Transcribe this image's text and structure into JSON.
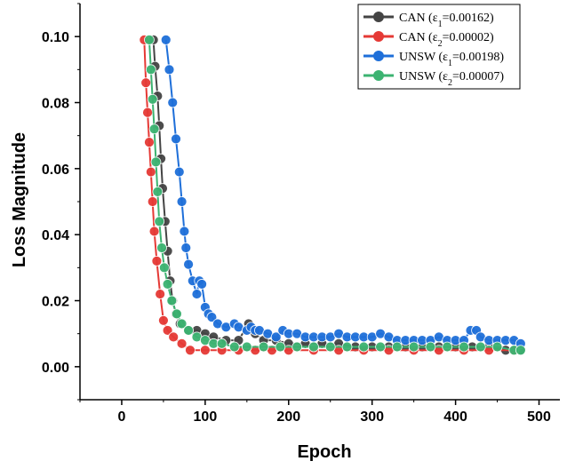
{
  "chart_data": {
    "type": "line",
    "title": "",
    "xlabel": "Epoch",
    "ylabel": "Loss Magnitude",
    "xlim": [
      -50,
      525
    ],
    "ylim": [
      -0.01,
      0.11
    ],
    "x_ticks": [
      0,
      100,
      200,
      300,
      400,
      500
    ],
    "y_ticks": [
      0.0,
      0.02,
      0.04,
      0.06,
      0.08,
      0.1
    ],
    "y_tick_labels": [
      "0.00",
      "0.02",
      "0.04",
      "0.06",
      "0.08",
      "0.10"
    ],
    "grid": false,
    "legend_position": "top-right",
    "series": [
      {
        "name": "CAN (ε1=0.00162)",
        "legend": {
          "base": "CAN (ε",
          "sub": "1",
          "rest": "=0.00162)"
        },
        "color": "#444444",
        "points": [
          [
            38,
            0.099
          ],
          [
            40,
            0.091
          ],
          [
            43,
            0.082
          ],
          [
            45,
            0.073
          ],
          [
            47,
            0.063
          ],
          [
            49,
            0.054
          ],
          [
            52,
            0.044
          ],
          [
            55,
            0.035
          ],
          [
            58,
            0.026
          ],
          [
            61,
            0.02
          ],
          [
            65,
            0.016
          ],
          [
            70,
            0.013
          ],
          [
            80,
            0.011
          ],
          [
            90,
            0.011
          ],
          [
            100,
            0.01
          ],
          [
            110,
            0.009
          ],
          [
            125,
            0.008
          ],
          [
            140,
            0.008
          ],
          [
            152,
            0.013
          ],
          [
            160,
            0.01
          ],
          [
            170,
            0.008
          ],
          [
            185,
            0.008
          ],
          [
            200,
            0.007
          ],
          [
            220,
            0.007
          ],
          [
            240,
            0.007
          ],
          [
            260,
            0.007
          ],
          [
            280,
            0.006
          ],
          [
            300,
            0.006
          ],
          [
            320,
            0.006
          ],
          [
            340,
            0.006
          ],
          [
            360,
            0.006
          ],
          [
            380,
            0.006
          ],
          [
            400,
            0.006
          ],
          [
            420,
            0.006
          ],
          [
            440,
            0.006
          ],
          [
            460,
            0.005
          ],
          [
            478,
            0.005
          ]
        ]
      },
      {
        "name": "CAN (ε2=0.00002)",
        "legend": {
          "base": "CAN (ε",
          "sub": "2",
          "rest": "=0.00002)"
        },
        "color": "#e53935",
        "points": [
          [
            27,
            0.099
          ],
          [
            29,
            0.086
          ],
          [
            31,
            0.077
          ],
          [
            33,
            0.068
          ],
          [
            35,
            0.059
          ],
          [
            37,
            0.05
          ],
          [
            39,
            0.041
          ],
          [
            42,
            0.032
          ],
          [
            46,
            0.022
          ],
          [
            50,
            0.014
          ],
          [
            55,
            0.011
          ],
          [
            62,
            0.009
          ],
          [
            72,
            0.007
          ],
          [
            82,
            0.005
          ],
          [
            100,
            0.005
          ],
          [
            120,
            0.005
          ],
          [
            140,
            0.005
          ],
          [
            160,
            0.005
          ],
          [
            180,
            0.005
          ],
          [
            200,
            0.005
          ],
          [
            230,
            0.005
          ],
          [
            260,
            0.005
          ],
          [
            290,
            0.005
          ],
          [
            320,
            0.005
          ],
          [
            350,
            0.005
          ],
          [
            380,
            0.005
          ],
          [
            410,
            0.005
          ],
          [
            440,
            0.005
          ],
          [
            470,
            0.005
          ]
        ]
      },
      {
        "name": "UNSW (ε1=0.00198)",
        "legend": {
          "base": "UNSW (ε",
          "sub": "1",
          "rest": "=0.00198)"
        },
        "color": "#1e6fd9",
        "points": [
          [
            53,
            0.099
          ],
          [
            57,
            0.09
          ],
          [
            61,
            0.08
          ],
          [
            65,
            0.069
          ],
          [
            69,
            0.059
          ],
          [
            72,
            0.05
          ],
          [
            75,
            0.041
          ],
          [
            77,
            0.036
          ],
          [
            80,
            0.031
          ],
          [
            85,
            0.026
          ],
          [
            90,
            0.022
          ],
          [
            93,
            0.026
          ],
          [
            96,
            0.025
          ],
          [
            100,
            0.018
          ],
          [
            104,
            0.016
          ],
          [
            108,
            0.015
          ],
          [
            115,
            0.013
          ],
          [
            125,
            0.012
          ],
          [
            135,
            0.013
          ],
          [
            140,
            0.012
          ],
          [
            150,
            0.011
          ],
          [
            155,
            0.012
          ],
          [
            160,
            0.011
          ],
          [
            165,
            0.011
          ],
          [
            175,
            0.01
          ],
          [
            185,
            0.009
          ],
          [
            193,
            0.011
          ],
          [
            200,
            0.01
          ],
          [
            210,
            0.01
          ],
          [
            220,
            0.009
          ],
          [
            230,
            0.009
          ],
          [
            240,
            0.009
          ],
          [
            250,
            0.009
          ],
          [
            260,
            0.01
          ],
          [
            270,
            0.009
          ],
          [
            280,
            0.009
          ],
          [
            290,
            0.009
          ],
          [
            300,
            0.009
          ],
          [
            310,
            0.01
          ],
          [
            320,
            0.009
          ],
          [
            330,
            0.008
          ],
          [
            340,
            0.008
          ],
          [
            350,
            0.008
          ],
          [
            360,
            0.008
          ],
          [
            370,
            0.008
          ],
          [
            380,
            0.009
          ],
          [
            390,
            0.008
          ],
          [
            400,
            0.008
          ],
          [
            410,
            0.008
          ],
          [
            418,
            0.011
          ],
          [
            425,
            0.011
          ],
          [
            430,
            0.009
          ],
          [
            440,
            0.008
          ],
          [
            450,
            0.008
          ],
          [
            460,
            0.008
          ],
          [
            470,
            0.008
          ],
          [
            478,
            0.007
          ]
        ]
      },
      {
        "name": "UNSW (ε2=0.00007)",
        "legend": {
          "base": "UNSW (ε",
          "sub": "2",
          "rest": "=0.00007)"
        },
        "color": "#3cb371",
        "points": [
          [
            33,
            0.099
          ],
          [
            35,
            0.09
          ],
          [
            37,
            0.081
          ],
          [
            39,
            0.072
          ],
          [
            41,
            0.062
          ],
          [
            43,
            0.053
          ],
          [
            45,
            0.044
          ],
          [
            48,
            0.036
          ],
          [
            51,
            0.03
          ],
          [
            55,
            0.025
          ],
          [
            60,
            0.02
          ],
          [
            66,
            0.016
          ],
          [
            72,
            0.013
          ],
          [
            80,
            0.011
          ],
          [
            90,
            0.009
          ],
          [
            100,
            0.008
          ],
          [
            110,
            0.007
          ],
          [
            120,
            0.007
          ],
          [
            135,
            0.006
          ],
          [
            150,
            0.006
          ],
          [
            170,
            0.006
          ],
          [
            190,
            0.006
          ],
          [
            210,
            0.006
          ],
          [
            230,
            0.006
          ],
          [
            250,
            0.006
          ],
          [
            270,
            0.006
          ],
          [
            290,
            0.006
          ],
          [
            310,
            0.006
          ],
          [
            330,
            0.006
          ],
          [
            350,
            0.006
          ],
          [
            370,
            0.006
          ],
          [
            390,
            0.006
          ],
          [
            410,
            0.006
          ],
          [
            430,
            0.006
          ],
          [
            450,
            0.006
          ],
          [
            470,
            0.005
          ],
          [
            478,
            0.005
          ]
        ]
      }
    ]
  }
}
